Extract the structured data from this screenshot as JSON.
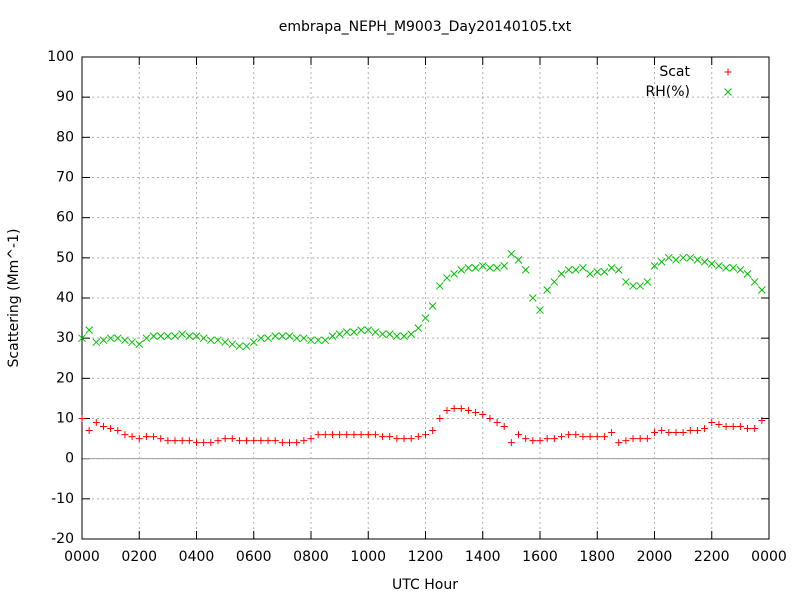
{
  "chart_data": {
    "type": "scatter",
    "title": "embrapa_NEPH_M9003_Day20140105.txt",
    "x_label": "UTC Hour",
    "y_label": "Scattering (Mm^-1)",
    "x": [
      0,
      0.25,
      0.5,
      0.75,
      1,
      1.25,
      1.5,
      1.75,
      2,
      2.25,
      2.5,
      2.75,
      3,
      3.25,
      3.5,
      3.75,
      4,
      4.25,
      4.5,
      4.75,
      5,
      5.25,
      5.5,
      5.75,
      6,
      6.25,
      6.5,
      6.75,
      7,
      7.25,
      7.5,
      7.75,
      8,
      8.25,
      8.5,
      8.75,
      9,
      9.25,
      9.5,
      9.75,
      10,
      10.25,
      10.5,
      10.75,
      11,
      11.25,
      11.5,
      11.75,
      12,
      12.25,
      12.5,
      12.75,
      13,
      13.25,
      13.5,
      13.75,
      14,
      14.25,
      14.5,
      14.75,
      15,
      15.25,
      15.5,
      15.75,
      16,
      16.25,
      16.5,
      16.75,
      17,
      17.25,
      17.5,
      17.75,
      18,
      18.25,
      18.5,
      18.75,
      19,
      19.25,
      19.5,
      19.75,
      20,
      20.25,
      20.5,
      20.75,
      21,
      21.25,
      21.5,
      21.75,
      22,
      22.25,
      22.5,
      22.75,
      23,
      23.25,
      23.5,
      23.75
    ],
    "series": [
      {
        "name": "Scat",
        "color": "#ff0000",
        "marker": "plus",
        "values": [
          10,
          7,
          9,
          8,
          7.5,
          7,
          6,
          5.5,
          5,
          5.5,
          5.5,
          5,
          4.5,
          4.5,
          4.5,
          4.5,
          4,
          4,
          4,
          4.5,
          5,
          5,
          4.5,
          4.5,
          4.5,
          4.5,
          4.5,
          4.5,
          4,
          4,
          4,
          4.5,
          5,
          6,
          6,
          6,
          6,
          6,
          6,
          6,
          6,
          6,
          5.5,
          5.5,
          5,
          5,
          5,
          5.5,
          6,
          7,
          10,
          12,
          12.5,
          12.5,
          12,
          11.5,
          11,
          10,
          9,
          8,
          4,
          6,
          5,
          4.5,
          4.5,
          5,
          5,
          5.5,
          6,
          6,
          5.5,
          5.5,
          5.5,
          5.5,
          6.5,
          4,
          4.5,
          5,
          5,
          5,
          6.5,
          7,
          6.5,
          6.5,
          6.5,
          7,
          7,
          7.5,
          9,
          8.5,
          8,
          8,
          8,
          7.5,
          7.5,
          9.5
        ]
      },
      {
        "name": "RH(%)",
        "color": "#00c000",
        "marker": "cross",
        "values": [
          30,
          32,
          29,
          29.5,
          30,
          30,
          29.5,
          29,
          28.5,
          30,
          30.5,
          30.5,
          30.5,
          30.5,
          31,
          30.5,
          30.5,
          30,
          29.5,
          29.5,
          29,
          28.5,
          28,
          28,
          29,
          30,
          30,
          30.5,
          30.5,
          30.5,
          30,
          30,
          29.5,
          29.5,
          29.5,
          30.5,
          31,
          31.5,
          31.5,
          32,
          32,
          31.5,
          31,
          31,
          30.5,
          30.5,
          31,
          32.5,
          35,
          38,
          43,
          45,
          46,
          47,
          47.5,
          47.5,
          48,
          47.5,
          47.5,
          48,
          51,
          49.5,
          47,
          40,
          37,
          42,
          44,
          46,
          47,
          47,
          47.5,
          46,
          46.5,
          46.5,
          47.5,
          47,
          44,
          43,
          43,
          44,
          48,
          49,
          50,
          49.5,
          50,
          50,
          49.5,
          49,
          48.5,
          48,
          47.5,
          47.5,
          47,
          46,
          44,
          42
        ]
      }
    ],
    "xlim": [
      0,
      24
    ],
    "xticks": [
      {
        "value": 0,
        "label": "0000"
      },
      {
        "value": 2,
        "label": "0200"
      },
      {
        "value": 4,
        "label": "0400"
      },
      {
        "value": 6,
        "label": "0600"
      },
      {
        "value": 8,
        "label": "0800"
      },
      {
        "value": 10,
        "label": "1000"
      },
      {
        "value": 12,
        "label": "1200"
      },
      {
        "value": 14,
        "label": "1400"
      },
      {
        "value": 16,
        "label": "1600"
      },
      {
        "value": 18,
        "label": "1800"
      },
      {
        "value": 20,
        "label": "2000"
      },
      {
        "value": 22,
        "label": "2200"
      },
      {
        "value": 24,
        "label": "0000"
      }
    ],
    "ylim": [
      -20,
      100
    ],
    "yticks": [
      -20,
      -10,
      0,
      10,
      20,
      30,
      40,
      50,
      60,
      70,
      80,
      90,
      100
    ],
    "grid": true,
    "zeroaxis": true,
    "legend": "top-right"
  }
}
